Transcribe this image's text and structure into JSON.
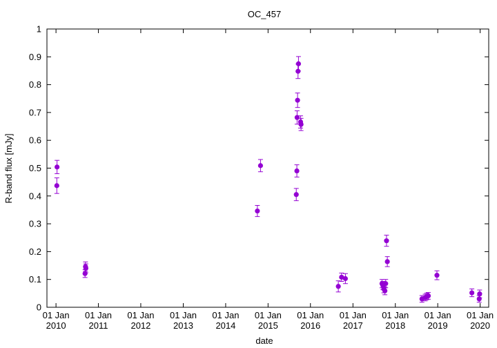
{
  "chart_data": {
    "type": "scatter",
    "title": "OC_457",
    "xlabel": "date",
    "ylabel": "R-band flux [mJy]",
    "ylim": [
      0,
      1
    ],
    "yticks": [
      "0",
      "0.1",
      "0.2",
      "0.3",
      "0.4",
      "0.5",
      "0.6",
      "0.7",
      "0.8",
      "0.9",
      "1"
    ],
    "xlim": [
      "2009-10-15",
      "2020-03-15"
    ],
    "xticks": [
      {
        "date": "2010-01-01",
        "line1": "01 Jan",
        "line2": "2010"
      },
      {
        "date": "2011-01-01",
        "line1": "01 Jan",
        "line2": "2011"
      },
      {
        "date": "2012-01-01",
        "line1": "01 Jan",
        "line2": "2012"
      },
      {
        "date": "2013-01-01",
        "line1": "01 Jan",
        "line2": "2013"
      },
      {
        "date": "2014-01-01",
        "line1": "01 Jan",
        "line2": "2014"
      },
      {
        "date": "2015-01-01",
        "line1": "01 Jan",
        "line2": "2015"
      },
      {
        "date": "2016-01-01",
        "line1": "01 Jan",
        "line2": "2016"
      },
      {
        "date": "2017-01-01",
        "line1": "01 Jan",
        "line2": "2017"
      },
      {
        "date": "2018-01-01",
        "line1": "01 Jan",
        "line2": "2018"
      },
      {
        "date": "2019-01-01",
        "line1": "01 Jan",
        "line2": "2019"
      },
      {
        "date": "2020-01-01",
        "line1": "01 Jan",
        "line2": "2020"
      }
    ],
    "grid": false,
    "legend": "none",
    "marker_color": "#9400d3",
    "points": [
      {
        "date": "2010-01-08",
        "y": 0.437,
        "err": 0.028
      },
      {
        "date": "2010-01-10",
        "y": 0.504,
        "err": 0.024
      },
      {
        "date": "2010-09-08",
        "y": 0.121,
        "err": 0.014
      },
      {
        "date": "2010-09-12",
        "y": 0.146,
        "err": 0.017
      },
      {
        "date": "2010-09-15",
        "y": 0.14,
        "err": 0.016
      },
      {
        "date": "2014-10-01",
        "y": 0.346,
        "err": 0.02
      },
      {
        "date": "2014-10-28",
        "y": 0.509,
        "err": 0.022
      },
      {
        "date": "2015-09-01",
        "y": 0.405,
        "err": 0.022
      },
      {
        "date": "2015-09-06",
        "y": 0.49,
        "err": 0.022
      },
      {
        "date": "2015-09-08",
        "y": 0.682,
        "err": 0.024
      },
      {
        "date": "2015-09-12",
        "y": 0.744,
        "err": 0.026
      },
      {
        "date": "2015-09-16",
        "y": 0.848,
        "err": 0.026
      },
      {
        "date": "2015-09-20",
        "y": 0.875,
        "err": 0.026
      },
      {
        "date": "2015-10-08",
        "y": 0.666,
        "err": 0.022
      },
      {
        "date": "2015-10-12",
        "y": 0.657,
        "err": 0.022
      },
      {
        "date": "2016-08-28",
        "y": 0.075,
        "err": 0.02
      },
      {
        "date": "2016-09-25",
        "y": 0.108,
        "err": 0.015
      },
      {
        "date": "2016-10-28",
        "y": 0.103,
        "err": 0.018
      },
      {
        "date": "2017-09-08",
        "y": 0.085,
        "err": 0.015
      },
      {
        "date": "2017-09-16",
        "y": 0.078,
        "err": 0.015
      },
      {
        "date": "2017-09-24",
        "y": 0.066,
        "err": 0.014
      },
      {
        "date": "2017-10-03",
        "y": 0.059,
        "err": 0.014
      },
      {
        "date": "2017-10-10",
        "y": 0.085,
        "err": 0.015
      },
      {
        "date": "2017-10-17",
        "y": 0.239,
        "err": 0.02
      },
      {
        "date": "2017-10-24",
        "y": 0.164,
        "err": 0.018
      },
      {
        "date": "2018-08-18",
        "y": 0.03,
        "err": 0.012
      },
      {
        "date": "2018-09-15",
        "y": 0.035,
        "err": 0.012
      },
      {
        "date": "2018-09-28",
        "y": 0.039,
        "err": 0.012
      },
      {
        "date": "2018-10-12",
        "y": 0.041,
        "err": 0.012
      },
      {
        "date": "2018-12-25",
        "y": 0.115,
        "err": 0.016
      },
      {
        "date": "2019-10-22",
        "y": 0.052,
        "err": 0.014
      },
      {
        "date": "2019-12-24",
        "y": 0.03,
        "err": 0.012
      },
      {
        "date": "2019-12-28",
        "y": 0.048,
        "err": 0.014
      }
    ]
  }
}
